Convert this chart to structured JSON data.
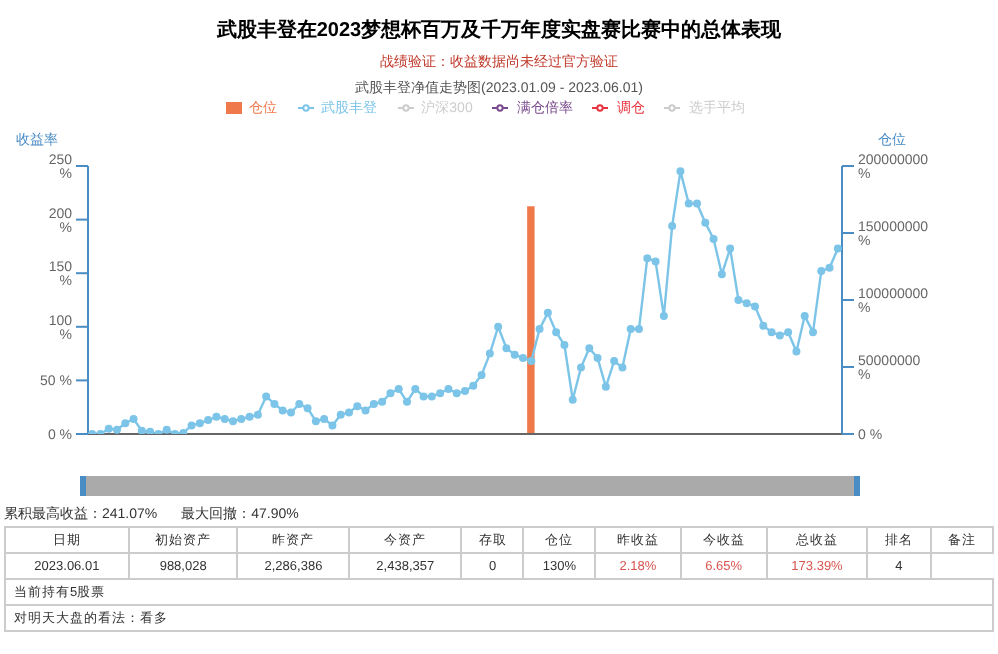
{
  "chart_data": {
    "type": "line",
    "title": "武股丰登在2023梦想杯百万及千万年度实盘赛比赛中的总体表现",
    "subtitle": "战绩验证：收益数据尚未经过官方验证",
    "ylabel": "收益率",
    "y2label": "仓位",
    "categories": [
      null,
      null,
      null,
      null,
      null,
      null,
      null,
      null,
      null,
      null,
      null,
      null,
      null,
      null,
      null,
      null,
      null,
      null,
      null,
      null,
      null,
      null,
      null,
      null,
      null,
      null,
      null,
      null,
      null,
      null,
      null,
      null,
      null,
      null,
      null,
      null,
      null,
      null,
      null,
      null,
      null,
      null,
      null,
      null,
      null,
      null,
      null,
      null,
      null,
      null,
      null,
      null,
      null,
      null,
      null,
      null,
      null,
      null,
      null,
      null,
      null,
      null,
      null,
      null,
      null,
      null,
      null,
      null,
      null,
      null,
      null,
      null,
      null,
      null,
      null,
      null,
      null,
      null,
      null,
      null,
      null,
      null,
      null,
      null,
      null,
      null,
      null,
      null,
      null,
      null,
      null
    ],
    "series": [
      {
        "name": "仓位",
        "type": "bar",
        "axis": "y2",
        "color": "#f0794b",
        "values": [
          null,
          null,
          null,
          null,
          null,
          null,
          null,
          null,
          null,
          null,
          null,
          null,
          null,
          null,
          null,
          null,
          null,
          null,
          null,
          null,
          null,
          null,
          null,
          null,
          null,
          null,
          null,
          null,
          null,
          null,
          null,
          null,
          null,
          null,
          null,
          null,
          null,
          null,
          null,
          null,
          null,
          null,
          null,
          null,
          null,
          null,
          null,
          null,
          null,
          null,
          null,
          null,
          null,
          170000000,
          null,
          null,
          null,
          null,
          null,
          null,
          null,
          null,
          null,
          null,
          null,
          null,
          null,
          null,
          null,
          null,
          null,
          null,
          null,
          null,
          null,
          null,
          null,
          null,
          null,
          null,
          null,
          null,
          null,
          null,
          null,
          null,
          null,
          null,
          null,
          null,
          null
        ]
      },
      {
        "name": "武股丰登",
        "color": "#7cc4e8",
        "values": [
          0,
          0,
          5,
          4,
          10,
          14,
          3,
          2,
          0,
          4,
          0,
          1,
          8,
          10,
          13,
          16,
          14,
          12,
          14,
          16,
          18,
          35,
          28,
          22,
          20,
          28,
          24,
          12,
          14,
          8,
          18,
          20,
          26,
          22,
          28,
          30,
          38,
          42,
          30,
          42,
          35,
          35,
          38,
          42,
          38,
          40,
          45,
          55,
          75,
          100,
          80,
          74,
          71,
          68,
          98,
          113,
          95,
          83,
          32,
          62,
          80,
          71,
          44,
          68,
          62,
          98,
          98,
          164,
          161,
          110,
          194,
          245,
          215,
          215,
          197,
          182,
          149,
          173,
          125,
          122,
          119,
          101,
          95,
          92,
          95,
          77,
          110,
          95,
          152,
          155,
          173
        ]
      },
      {
        "name": "沪深300",
        "type": "line",
        "color": "#cccccc",
        "values": [
          null,
          null,
          null,
          null,
          null,
          null,
          null,
          null,
          null,
          null,
          null,
          null,
          null,
          null,
          null,
          null,
          null,
          null,
          null,
          null,
          null,
          null,
          null,
          null,
          null,
          null,
          null,
          null,
          null,
          null,
          null,
          null,
          null,
          null,
          null,
          null,
          null,
          null,
          null,
          null,
          null,
          null,
          null,
          null,
          null,
          null,
          null,
          null,
          null,
          null,
          null,
          null,
          null,
          null,
          null,
          null,
          null,
          null,
          null,
          null,
          null,
          null,
          null,
          null,
          null,
          null,
          null,
          null,
          null,
          null,
          null,
          null,
          null,
          null,
          null,
          null,
          null,
          null,
          null,
          null,
          null,
          null,
          null,
          null,
          null,
          null,
          null,
          null,
          null,
          null,
          null
        ]
      },
      {
        "name": "选手平均",
        "type": "line",
        "color": "#cccccc",
        "values": [
          null,
          null,
          null,
          null,
          null,
          null,
          null,
          null,
          null,
          null,
          null,
          null,
          null,
          null,
          null,
          null,
          null,
          null,
          null,
          null,
          null,
          null,
          null,
          null,
          null,
          null,
          null,
          null,
          null,
          null,
          null,
          null,
          null,
          null,
          null,
          null,
          null,
          null,
          null,
          null,
          null,
          null,
          null,
          null,
          null,
          null,
          null,
          null,
          null,
          null,
          null,
          null,
          null,
          null,
          null,
          null,
          null,
          null,
          null,
          null,
          null,
          null,
          null,
          null,
          null,
          null,
          null,
          null,
          null,
          null,
          null,
          null,
          null,
          null,
          null,
          null,
          null,
          null,
          null,
          null,
          null,
          null,
          null,
          null,
          null,
          null,
          null,
          null,
          null,
          null,
          null
        ]
      },
      {
        "name": "调仓",
        "type": "line",
        "color": "#e8323c",
        "values": [
          null,
          null,
          null,
          null,
          null,
          null,
          null,
          null,
          null,
          null,
          null,
          null,
          null,
          null,
          null,
          null,
          null,
          null,
          null,
          null,
          null,
          null,
          null,
          null,
          null,
          null,
          null,
          null,
          null,
          null,
          null,
          null,
          null,
          null,
          null,
          null,
          null,
          null,
          null,
          null,
          null,
          null,
          null,
          null,
          null,
          null,
          null,
          null,
          null,
          null,
          null,
          null,
          null,
          null,
          null,
          null,
          null,
          null,
          null,
          null,
          null,
          null,
          null,
          null,
          null,
          null,
          null,
          null,
          null,
          null,
          null,
          null,
          null,
          null,
          null,
          null,
          null,
          null,
          null,
          null,
          null,
          null,
          null,
          null,
          null,
          null,
          null,
          null,
          null,
          null,
          null
        ]
      },
      {
        "name": "满仓倍率",
        "type": "line",
        "color": "#7a4a8c",
        "values": [
          null,
          null,
          null,
          null,
          null,
          null,
          null,
          null,
          null,
          null,
          null,
          null,
          null,
          null,
          null,
          null,
          null,
          null,
          null,
          null,
          null,
          null,
          null,
          null,
          null,
          null,
          null,
          null,
          null,
          null,
          null,
          null,
          null,
          null,
          null,
          null,
          null,
          null,
          null,
          null,
          null,
          null,
          null,
          null,
          null,
          null,
          null,
          null,
          null,
          null,
          null,
          null,
          null,
          null,
          null,
          null,
          null,
          null,
          null,
          null,
          null,
          null,
          null,
          null,
          null,
          null,
          null,
          null,
          null,
          null,
          null,
          null,
          null,
          null,
          null,
          null,
          null,
          null,
          null,
          null,
          null,
          null,
          null,
          null,
          null,
          null,
          null,
          null,
          null,
          null,
          null
        ]
      }
    ],
    "ylim": [
      0,
      250
    ],
    "yticks": [
      {
        "value": 0,
        "label": "0 %"
      },
      {
        "value": 50,
        "label": "50 %"
      },
      {
        "value": 100,
        "label": "100 %"
      },
      {
        "value": 150,
        "label": "150 %"
      },
      {
        "value": 200,
        "label": "200 %"
      },
      {
        "value": 250,
        "label": "250 %"
      }
    ],
    "y2lim": [
      0,
      200000000
    ],
    "y2ticks": [
      {
        "value": 0,
        "label": "0 %"
      },
      {
        "value": 50000000,
        "label": "50000000 %"
      },
      {
        "value": 100000000,
        "label": "100000000 %"
      },
      {
        "value": 150000000,
        "label": "150000000 %"
      },
      {
        "value": 200000000,
        "label": "200000000 %"
      }
    ],
    "marker": "circle",
    "legend": "top",
    "grid": false,
    "annotations": [
      "武股丰登净值走势图(2023.01.09 - 2023.06.01)",
      "累积最高收益：241.07%",
      "最大回撤：47.90%",
      "日期",
      "初始资产",
      "昨资产",
      "今资产",
      "存取",
      "仓位",
      "昨收益",
      "今收益",
      "总收益",
      "排名",
      "备注",
      "2023.06.01",
      "988,028",
      "2,286,386",
      "2,438,357",
      "0",
      "130%",
      "2.18%",
      "6.65%",
      "173.39%",
      "4",
      "当前持有5股票",
      "对明天大盘的看法：看多"
    ]
  }
}
